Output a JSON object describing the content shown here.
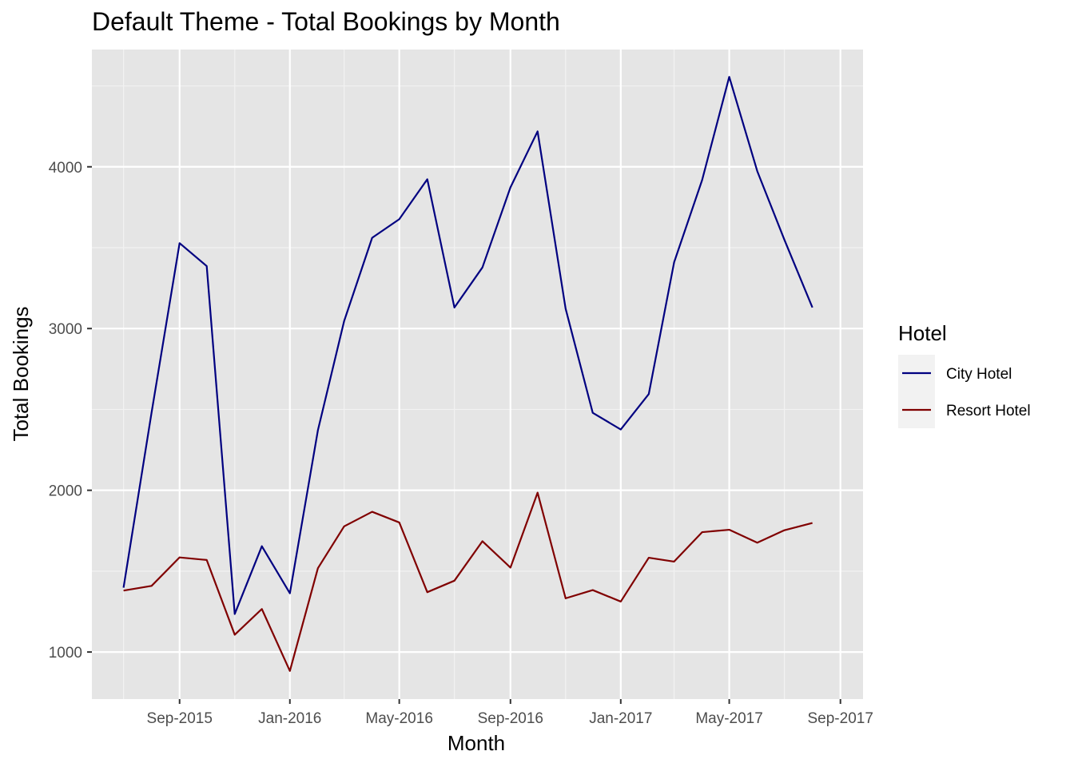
{
  "chart_data": {
    "type": "line",
    "title": "Default Theme - Total Bookings by Month",
    "xlabel": "Month",
    "ylabel": "Total Bookings",
    "x_axis_kind": "date",
    "x": [
      "2015-07-01",
      "2015-08-01",
      "2015-09-01",
      "2015-10-01",
      "2015-11-01",
      "2015-12-01",
      "2016-01-01",
      "2016-02-01",
      "2016-03-01",
      "2016-04-01",
      "2016-05-01",
      "2016-06-01",
      "2016-07-01",
      "2016-08-01",
      "2016-09-01",
      "2016-10-01",
      "2016-11-01",
      "2016-12-01",
      "2017-01-01",
      "2017-02-01",
      "2017-03-01",
      "2017-04-01",
      "2017-05-01",
      "2017-06-01",
      "2017-07-01",
      "2017-08-01"
    ],
    "x_tick_labels": [
      "Sep-2015",
      "Jan-2016",
      "May-2016",
      "Sep-2016",
      "Jan-2017",
      "May-2017",
      "Sep-2017"
    ],
    "x_ticks": [
      "2015-09-01",
      "2016-01-01",
      "2016-05-01",
      "2016-09-01",
      "2017-01-01",
      "2017-05-01",
      "2017-09-01"
    ],
    "x_minor_ticks": [
      "2015-07-01",
      "2015-11-01",
      "2016-03-01",
      "2016-07-01",
      "2016-11-01",
      "2017-03-01",
      "2017-07-01"
    ],
    "xlim": [
      "2015-05-27",
      "2017-09-26"
    ],
    "y_ticks": [
      1000,
      2000,
      3000,
      4000
    ],
    "y_minor_ticks": [
      1500,
      2500,
      3500,
      4500
    ],
    "ylim": [
      709,
      4725
    ],
    "grid": true,
    "legend": {
      "title": "Hotel",
      "placement": "right"
    },
    "series": [
      {
        "name": "City Hotel",
        "color": "#000080",
        "values": [
          1398,
          2480,
          3528,
          3386,
          1235,
          1654,
          1363,
          2371,
          3046,
          3561,
          3676,
          3923,
          3130,
          3378,
          3873,
          4219,
          3123,
          2479,
          2376,
          2595,
          3409,
          3918,
          4556,
          3973,
          3549,
          3130
        ]
      },
      {
        "name": "Resort Hotel",
        "color": "#800000",
        "values": [
          1380,
          1409,
          1585,
          1569,
          1107,
          1266,
          883,
          1518,
          1777,
          1867,
          1801,
          1370,
          1441,
          1685,
          1522,
          1985,
          1332,
          1383,
          1312,
          1583,
          1559,
          1741,
          1756,
          1676,
          1753,
          1798
        ]
      }
    ]
  },
  "colors": {
    "panel_background": "#e5e5e5",
    "grid_major": "#ffffff",
    "grid_minor": "#f2f2f2",
    "legend_key_background": "#f2f2f2"
  }
}
